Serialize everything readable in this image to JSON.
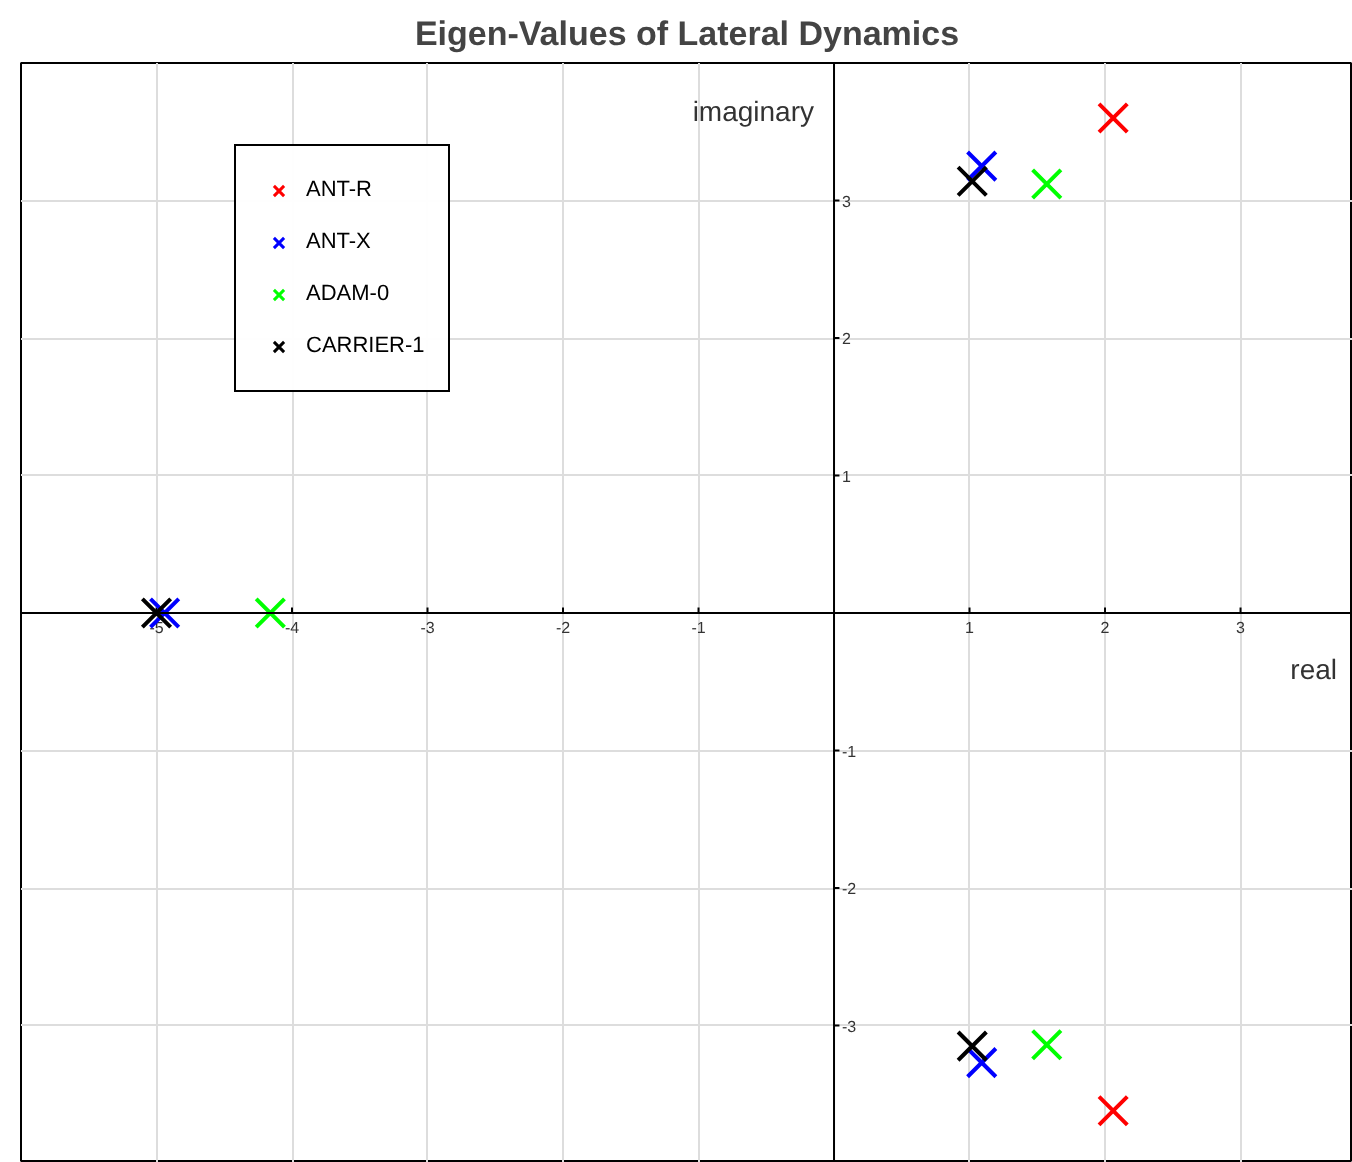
{
  "chart_data": {
    "type": "scatter",
    "title": "Eigen-Values of Lateral Dynamics",
    "xlabel": "real",
    "ylabel": "imaginary",
    "xlim": [
      -6,
      3.83
    ],
    "ylim": [
      -4,
      4
    ],
    "xticks": [
      -5,
      -4,
      -3,
      -2,
      -1,
      1,
      2,
      3
    ],
    "yticks": [
      -3,
      -2,
      -1,
      1,
      2,
      3
    ],
    "grid": true,
    "legend": "top left",
    "marker": "cross",
    "series": [
      {
        "name": "ANT-R",
        "color": "#ff0000",
        "x": [
          2.06,
          2.06
        ],
        "values": [
          3.6,
          -3.62
        ]
      },
      {
        "name": "ANT-X",
        "color": "#0000ff",
        "x": [
          1.09,
          1.09,
          -4.94
        ],
        "values": [
          3.25,
          -3.27,
          0
        ]
      },
      {
        "name": "ADAM-0",
        "color": "#00ff00",
        "x": [
          1.57,
          1.57,
          -4.16
        ],
        "values": [
          3.12,
          -3.14,
          0
        ]
      },
      {
        "name": "CARRIER-1",
        "color": "#000000",
        "x": [
          1.02,
          1.02,
          -5.0
        ],
        "values": [
          3.14,
          -3.15,
          0
        ]
      }
    ]
  }
}
